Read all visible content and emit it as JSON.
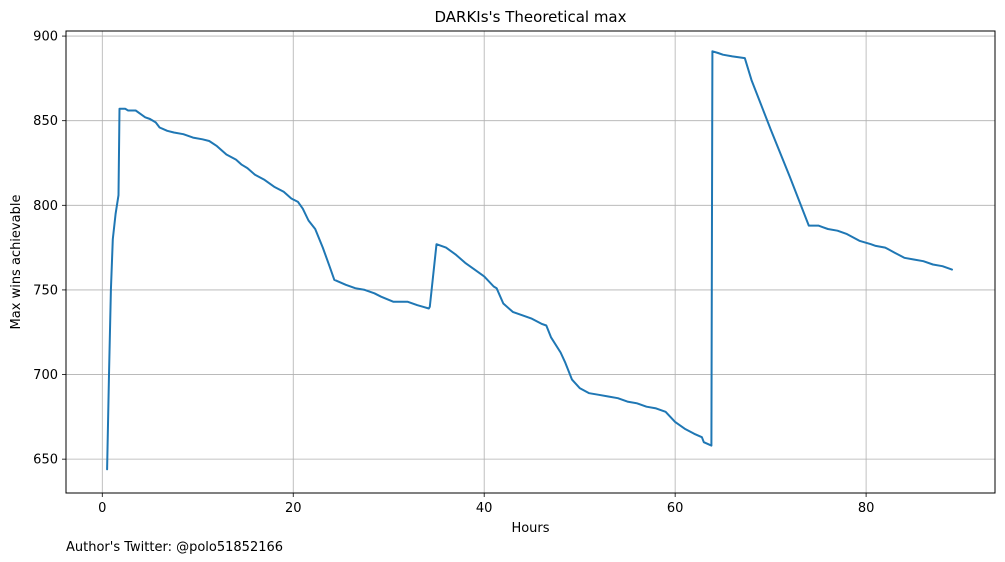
{
  "chart_data": {
    "type": "line",
    "title": "DARKIs's Theoretical max",
    "xlabel": "Hours",
    "ylabel": "Max wins achievable",
    "xlim": [
      -3.8,
      93.5
    ],
    "ylim": [
      630,
      903
    ],
    "xticks": [
      0,
      20,
      40,
      60,
      80
    ],
    "yticks": [
      650,
      700,
      750,
      800,
      850,
      900
    ],
    "grid": true,
    "line_color": "#1f77b4",
    "series": [
      {
        "x": [
          0.5,
          0.7,
          0.9,
          1.1,
          1.4,
          1.7,
          1.8,
          2.4,
          2.7,
          3.5,
          4.0,
          4.5,
          5.0,
          5.6,
          6.0,
          6.8,
          7.5,
          8.5,
          9.5,
          10.5,
          11.2,
          12.0,
          13.0,
          14.0,
          14.6,
          15.2,
          16.0,
          17.0,
          18.0,
          19.0,
          19.8,
          20.5,
          21.0,
          21.6,
          22.3,
          23.1,
          23.8,
          24.3,
          25.5,
          26.5,
          27.5,
          28.5,
          29.2,
          30.5,
          31.0,
          32.0,
          33.0,
          33.6,
          34.2,
          34.3,
          35.0,
          36.0,
          37.0,
          38.0,
          39.0,
          40.0,
          41.0,
          41.3,
          42.0,
          43.0,
          44.0,
          45.0,
          46.0,
          46.5,
          47.0,
          48.0,
          48.5,
          49.2,
          50.0,
          51.0,
          52.0,
          53.0,
          54.0,
          55.0,
          56.0,
          57.0,
          58.0,
          59.0,
          60.0,
          61.0,
          62.0,
          62.8,
          63.0,
          63.8,
          63.9,
          64.5,
          65.0,
          66.0,
          67.3,
          68.0,
          70.0,
          72.0,
          74.0,
          75.0,
          75.5,
          76.0,
          77.0,
          78.0,
          79.0,
          79.3,
          80.5,
          81.0,
          82.0,
          83.0,
          84.0,
          85.0,
          86.0,
          87.0,
          88.0,
          89.0
        ],
        "values": [
          644,
          700,
          750,
          780,
          795,
          806,
          857,
          857,
          856,
          856,
          854,
          852,
          851,
          849,
          846,
          844,
          843,
          842,
          840,
          839,
          838,
          835,
          830,
          827,
          824,
          822,
          818,
          815,
          811,
          808,
          804,
          802,
          798,
          791,
          786,
          775,
          764,
          756,
          753,
          751,
          750,
          748,
          746,
          743,
          743,
          743,
          741,
          740,
          739,
          740,
          777,
          775,
          771,
          766,
          762,
          758,
          752,
          751,
          742,
          737,
          735,
          733,
          730,
          729,
          722,
          713,
          707,
          697,
          692,
          689,
          688,
          687,
          686,
          684,
          683,
          681,
          680,
          678,
          672,
          668,
          665,
          663,
          660,
          658,
          891,
          890,
          889,
          888,
          887,
          874,
          845,
          817,
          788,
          788,
          787,
          786,
          785,
          783,
          780,
          779,
          777,
          776,
          775,
          772,
          769,
          768,
          767,
          765,
          764,
          762
        ]
      }
    ]
  },
  "footnote": "Author's Twitter: @polo51852166"
}
